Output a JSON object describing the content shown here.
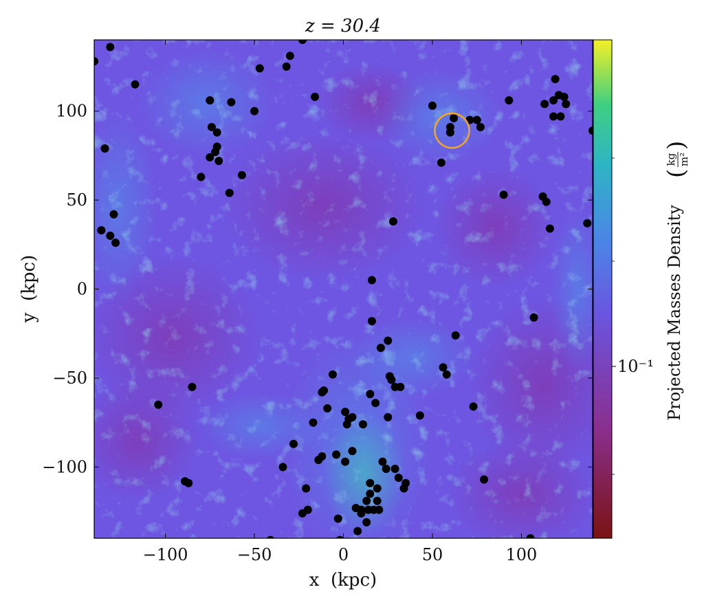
{
  "chart_data": {
    "type": "heatmap",
    "title": "z = 30.4",
    "xlabel": "x  (kpc)",
    "ylabel": "y  (kpc)",
    "xlim": [
      -140,
      140
    ],
    "ylim": [
      -140,
      140
    ],
    "xticks": [
      -100,
      -50,
      0,
      50,
      100
    ],
    "yticks": [
      -100,
      -50,
      0,
      50,
      100
    ],
    "xtick_labels": [
      "−100",
      "−50",
      "0",
      "50",
      "100"
    ],
    "ytick_labels": [
      "−100",
      "−50",
      "0",
      "50",
      "100"
    ],
    "colorbar": {
      "label": "Projected Masses Density",
      "unit_numerator": "kg",
      "unit_denominator": "m²",
      "tick_label": "10⁻¹",
      "colormap": "viridis",
      "bottom_color": "#7a1313"
    },
    "highlight": {
      "x": 61,
      "y": 89,
      "color": "#f5a623"
    },
    "halos": [
      [
        -140,
        128
      ],
      [
        -131,
        136
      ],
      [
        -117,
        115
      ],
      [
        -134,
        79
      ],
      [
        -129,
        42
      ],
      [
        -136,
        33
      ],
      [
        -131,
        30
      ],
      [
        -128,
        26
      ],
      [
        -75,
        106
      ],
      [
        -74,
        91
      ],
      [
        -71,
        88
      ],
      [
        -71,
        80
      ],
      [
        -72,
        77
      ],
      [
        -75,
        74
      ],
      [
        -70,
        72
      ],
      [
        -63,
        105
      ],
      [
        -57,
        64
      ],
      [
        -80,
        63
      ],
      [
        -64,
        54
      ],
      [
        -50,
        100
      ],
      [
        -47,
        124
      ],
      [
        -32,
        125
      ],
      [
        -30,
        131
      ],
      [
        -23,
        140
      ],
      [
        -16,
        108
      ],
      [
        50,
        103
      ],
      [
        62,
        96
      ],
      [
        60,
        91
      ],
      [
        60,
        88
      ],
      [
        71,
        95
      ],
      [
        75,
        95
      ],
      [
        77,
        91
      ],
      [
        55,
        71
      ],
      [
        93,
        106
      ],
      [
        90,
        53
      ],
      [
        112,
        52
      ],
      [
        114,
        49
      ],
      [
        116,
        34
      ],
      [
        137,
        37
      ],
      [
        140,
        89
      ],
      [
        113,
        104
      ],
      [
        118,
        106
      ],
      [
        119,
        118
      ],
      [
        121,
        109
      ],
      [
        124,
        108
      ],
      [
        125,
        104
      ],
      [
        118,
        97
      ],
      [
        122,
        97
      ],
      [
        28,
        38
      ],
      [
        16,
        5
      ],
      [
        16,
        -18
      ],
      [
        25,
        -29
      ],
      [
        21,
        -33
      ],
      [
        63,
        -26
      ],
      [
        107,
        -16
      ],
      [
        56,
        -44
      ],
      [
        58,
        -48
      ],
      [
        26,
        -49
      ],
      [
        27,
        -51
      ],
      [
        32,
        -55
      ],
      [
        29,
        -55
      ],
      [
        -6,
        -48
      ],
      [
        -11,
        -57
      ],
      [
        -12,
        -58
      ],
      [
        -9,
        -67
      ],
      [
        -17,
        -75
      ],
      [
        1,
        -69
      ],
      [
        3,
        -73
      ],
      [
        5,
        -72
      ],
      [
        2,
        -76
      ],
      [
        11,
        -76
      ],
      [
        15,
        -59
      ],
      [
        18,
        -64
      ],
      [
        25,
        -72
      ],
      [
        43,
        -71
      ],
      [
        73,
        -66
      ],
      [
        -85,
        -55
      ],
      [
        -104,
        -65
      ],
      [
        -28,
        -87
      ],
      [
        -34,
        -100
      ],
      [
        -12,
        -94
      ],
      [
        -14,
        -96
      ],
      [
        -4,
        -93
      ],
      [
        1,
        -97
      ],
      [
        5,
        -91
      ],
      [
        22,
        -97
      ],
      [
        24,
        -101
      ],
      [
        29,
        -101
      ],
      [
        31,
        -106
      ],
      [
        35,
        -109
      ],
      [
        34,
        -112
      ],
      [
        15,
        -109
      ],
      [
        19,
        -112
      ],
      [
        15,
        -115
      ],
      [
        13,
        -119
      ],
      [
        19,
        -119
      ],
      [
        17,
        -124
      ],
      [
        14,
        -124
      ],
      [
        10,
        -124
      ],
      [
        10,
        -126
      ],
      [
        7,
        -123
      ],
      [
        8,
        -136
      ],
      [
        -2,
        -141
      ],
      [
        -3,
        -129
      ],
      [
        -21,
        -112
      ],
      [
        -20,
        -124
      ],
      [
        -23,
        -126
      ],
      [
        -41,
        -141
      ],
      [
        -89,
        -108
      ],
      [
        -87,
        -109
      ],
      [
        79,
        -107
      ],
      [
        105,
        -140
      ],
      [
        13,
        -131
      ],
      [
        20,
        -124
      ]
    ]
  }
}
